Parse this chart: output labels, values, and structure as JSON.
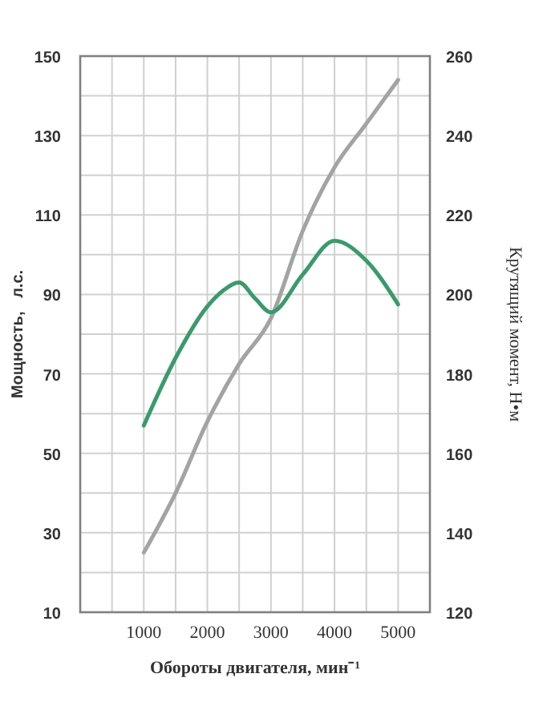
{
  "chart_data": {
    "type": "line",
    "xlabel": "Обороты двигателя, мин⁻¹",
    "ylabel": "Мощность,   л.с.",
    "y2label": "Крутящий момент, Н•м",
    "x": [
      1000,
      1500,
      2000,
      2500,
      3000,
      3500,
      4000,
      4500,
      5000
    ],
    "series": [
      {
        "color": "#a3a3a3",
        "values": [
          25,
          40,
          58,
          72.5,
          84,
          106,
          122,
          133,
          144
        ]
      },
      {
        "color": "#3b9a6b",
        "axis": "y2",
        "x": [
          1000,
          1500,
          2000,
          2250,
          2500,
          2750,
          3000,
          3500,
          4000,
          4500,
          5000
        ],
        "values": [
          167,
          184,
          197,
          201,
          203,
          199,
          195.5,
          205,
          213.5,
          208.5,
          197.5
        ]
      }
    ],
    "xlim": [
      0,
      5500
    ],
    "xticks": [
      {
        "value": 500,
        "label": null
      },
      1000,
      {
        "value": 1500,
        "label": null
      },
      2000,
      {
        "value": 2500,
        "label": null
      },
      3000,
      {
        "value": 3500,
        "label": null
      },
      4000,
      {
        "value": 4500,
        "label": null
      },
      5000
    ],
    "ylim": [
      10,
      150
    ],
    "yticks": [
      10,
      {
        "value": 20,
        "label": null
      },
      30,
      {
        "value": 40,
        "label": null
      },
      50,
      {
        "value": 60,
        "label": null
      },
      70,
      {
        "value": 80,
        "label": null
      },
      90,
      {
        "value": 100,
        "label": null
      },
      110,
      {
        "value": 120,
        "label": null
      },
      130,
      {
        "value": 140,
        "label": null
      },
      150
    ],
    "y2lim": [
      120,
      260
    ],
    "y2ticks": [
      120,
      140,
      160,
      180,
      200,
      220,
      240,
      260
    ],
    "grid": true,
    "line_style": "solid",
    "marker": "none"
  }
}
